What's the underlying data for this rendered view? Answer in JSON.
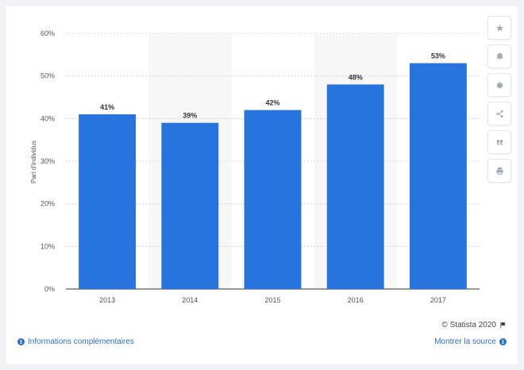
{
  "chart_data": {
    "type": "bar",
    "categories": [
      "2013",
      "2014",
      "2015",
      "2016",
      "2017"
    ],
    "values": [
      41,
      39,
      42,
      48,
      53
    ],
    "value_labels": [
      "41%",
      "39%",
      "42%",
      "48%",
      "53%"
    ],
    "title": "",
    "xlabel": "",
    "ylabel": "Part d'individus",
    "ylim": [
      0,
      60
    ],
    "yticks": [
      "0%",
      "10%",
      "20%",
      "30%",
      "40%",
      "50%",
      "60%"
    ],
    "grid": true,
    "bar_color": "#2874de",
    "band_color": "#f7f7f7"
  },
  "toolbar": {
    "buttons": [
      "star-icon",
      "bell-icon",
      "gear-icon",
      "share-icon",
      "quote-icon",
      "print-icon"
    ]
  },
  "footer": {
    "copyright": "© Statista 2020",
    "info_link": "Informations complémentaires",
    "source_link": "Montrer la source"
  }
}
